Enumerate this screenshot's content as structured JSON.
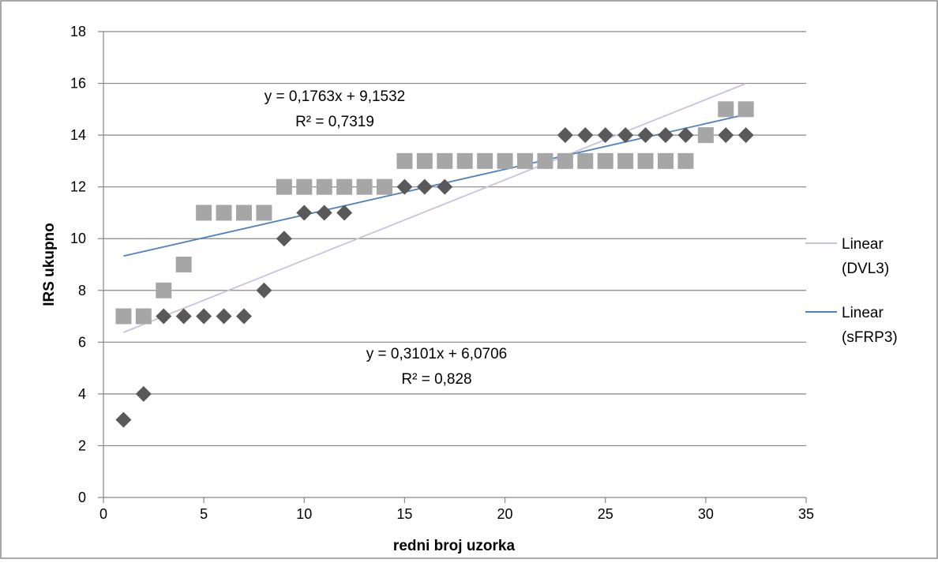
{
  "chart_data": {
    "type": "scatter",
    "title": "",
    "xlabel": "redni broj uzorka",
    "ylabel": "IRS ukupno",
    "xlim": [
      0,
      35
    ],
    "ylim": [
      0,
      18
    ],
    "x_ticks": [
      0,
      5,
      10,
      15,
      20,
      25,
      30,
      35
    ],
    "y_ticks": [
      0,
      2,
      4,
      6,
      8,
      10,
      12,
      14,
      16,
      18
    ],
    "grid": "horizontal",
    "legend_position": "right",
    "series": [
      {
        "marker": "square",
        "color": "#a6a6a6",
        "x": [
          1,
          2,
          3,
          4,
          5,
          6,
          7,
          8,
          9,
          10,
          11,
          12,
          13,
          14,
          15,
          16,
          17,
          18,
          19,
          20,
          21,
          22,
          23,
          24,
          25,
          26,
          27,
          28,
          29,
          30,
          31,
          32
        ],
        "y": [
          7,
          7,
          8,
          9,
          11,
          11,
          11,
          11,
          12,
          12,
          12,
          12,
          12,
          12,
          13,
          13,
          13,
          13,
          13,
          13,
          13,
          13,
          13,
          13,
          13,
          13,
          13,
          13,
          13,
          14,
          15,
          15
        ]
      },
      {
        "marker": "diamond",
        "color": "#595959",
        "x": [
          1,
          2,
          3,
          4,
          5,
          6,
          7,
          8,
          9,
          10,
          11,
          12,
          15,
          16,
          17,
          23,
          24,
          25,
          26,
          27,
          28,
          29,
          31,
          32
        ],
        "y": [
          3,
          4,
          7,
          7,
          7,
          7,
          7,
          8,
          10,
          11,
          11,
          11,
          12,
          12,
          12,
          14,
          14,
          14,
          14,
          14,
          14,
          14,
          14,
          14
        ]
      }
    ],
    "trendlines": [
      {
        "legend": "Linear (DVL3)",
        "color": "#ccc0da",
        "slope": 0.3101,
        "intercept": 6.0706,
        "x_range": [
          1,
          32
        ],
        "equation": "y = 0,3101x + 6,0706",
        "r2": "R² = 0,828"
      },
      {
        "legend": "Linear (sFRP3)",
        "color": "#4f81bd",
        "slope": 0.1763,
        "intercept": 9.1532,
        "x_range": [
          1,
          32
        ],
        "equation": "y = 0,1763x + 9,1532",
        "r2": "R² = 0,7319"
      }
    ],
    "legend": [
      {
        "line1": "Linear",
        "line2": "(DVL3)",
        "color": "#ccc0da"
      },
      {
        "line1": "Linear",
        "line2": "(sFRP3)",
        "color": "#4f81bd"
      }
    ]
  }
}
